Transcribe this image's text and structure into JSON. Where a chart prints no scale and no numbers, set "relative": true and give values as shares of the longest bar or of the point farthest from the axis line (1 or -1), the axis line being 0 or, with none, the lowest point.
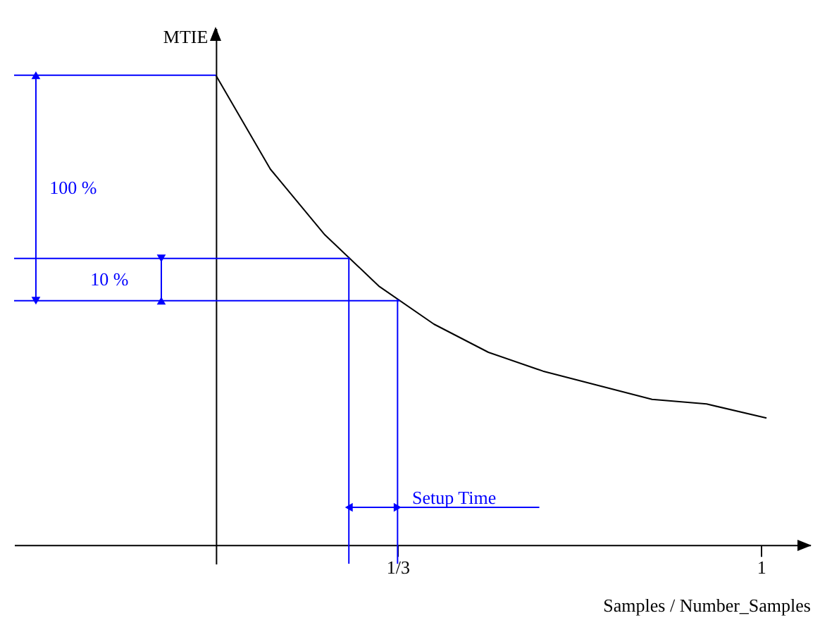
{
  "chart_data": {
    "type": "line",
    "relative": true,
    "xlabel": "Samples / Number_Samples",
    "ylabel": "MTIE",
    "x": [
      0,
      0.1,
      0.2,
      0.3,
      0.4,
      0.5,
      0.6,
      0.7,
      0.8,
      0.9,
      1.01
    ],
    "xlim": [
      -0.37,
      1.09
    ],
    "xticks": [
      {
        "value": 0.3333,
        "label": "1/3"
      },
      1
    ],
    "series": [
      {
        "color": "#000000",
        "values": [
          1,
          0.8,
          0.66,
          0.55,
          0.47,
          0.41,
          0.37,
          0.34,
          0.31,
          0.3,
          0.27
        ]
      }
    ],
    "ref_lines": [
      {
        "axis": "y",
        "value": 1,
        "color": "#0000ff"
      },
      {
        "axis": "y",
        "value": 0.61,
        "color": "#0000ff"
      },
      {
        "axis": "y",
        "value": 0.52,
        "color": "#0000ff"
      },
      {
        "axis": "x",
        "value": 0.244,
        "color": "#0000ff"
      },
      {
        "axis": "x",
        "value": 0.3333,
        "color": "#0000ff"
      }
    ],
    "annotations": [
      "100 %",
      "10 %",
      "Setup Time"
    ],
    "grid": false,
    "marker": "none"
  }
}
